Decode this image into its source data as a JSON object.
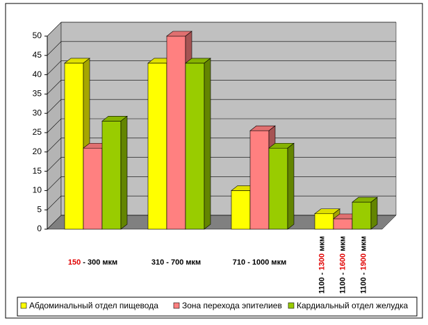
{
  "chart_data": {
    "type": "bar3d",
    "categories": [
      [
        [
          {
            "text": "150",
            "color": "#e00000"
          },
          {
            "text": " - 300 мкм",
            "color": "#000000"
          }
        ]
      ],
      [
        [
          {
            "text": "310 - 700 мкм",
            "color": "#000000"
          }
        ]
      ],
      [
        [
          {
            "text": "710 - 1000 мкм",
            "color": "#000000"
          }
        ]
      ],
      [
        [
          {
            "text": "1100 - ",
            "color": "#000000"
          },
          {
            "text": "1300",
            "color": "#e00000"
          },
          {
            "text": " мкм",
            "color": "#000000"
          }
        ],
        [
          {
            "text": "1100 - ",
            "color": "#000000"
          },
          {
            "text": "1600",
            "color": "#e00000"
          },
          {
            "text": " мкм",
            "color": "#000000"
          }
        ],
        [
          {
            "text": "1100 - ",
            "color": "#000000"
          },
          {
            "text": "1900",
            "color": "#e00000"
          },
          {
            "text": " мкм",
            "color": "#000000"
          }
        ]
      ]
    ],
    "series": [
      {
        "name": "Абдоминальный отдел пищевода",
        "color": "#ffff00",
        "values": [
          43,
          43,
          10,
          4
        ]
      },
      {
        "name": "Зона перехода эпителиев",
        "color": "#ff8080",
        "values": [
          21,
          50,
          25.5,
          2.7
        ]
      },
      {
        "name": "Кардиальный отдел желудка",
        "color": "#99cc00",
        "values": [
          28,
          43,
          21,
          7
        ]
      }
    ],
    "ylim": [
      0,
      50
    ],
    "yticks": [
      0,
      5,
      10,
      15,
      20,
      25,
      30,
      35,
      40,
      45,
      50
    ],
    "grid": true,
    "legend": "bottom"
  }
}
